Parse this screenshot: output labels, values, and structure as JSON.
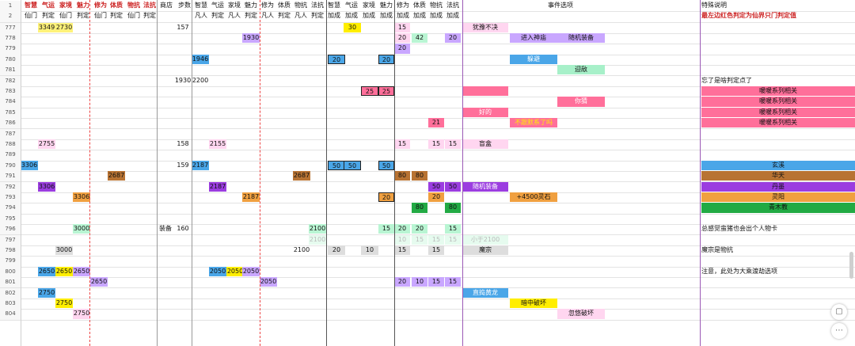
{
  "headers": {
    "row1": {
      "zhihui_xm": "智慧",
      "qiyun_xm": "气运",
      "jiajing_xm": "家境",
      "meili_xm": "魅力",
      "xiuwei_xm": "修为",
      "tizhi_xm": "体质",
      "wukang_xm": "物抗",
      "fakang_xm": "法抗",
      "shop": "商店",
      "steps": "步数",
      "zhihui_fr": "智慧",
      "qiyun_fr": "气运",
      "jiajing_fr": "家境",
      "meili_fr": "魅力",
      "xiuwei_fr": "修为",
      "tizhi_fr": "体质",
      "wukang_fr": "物抗",
      "fakang_fr": "法抗",
      "zhihui_j": "智慧",
      "qiyun_j": "气运",
      "jiajing_j": "家境",
      "meili_j": "魅力",
      "xiuwei_j": "修为",
      "tizhi_j": "体质",
      "wukang_j": "物抗",
      "fakang_j": "法抗",
      "events": "事件选项",
      "special": "特殊说明"
    },
    "row2": {
      "zhihui_xm": "仙门",
      "qiyun_xm": "判定",
      "jiajing_xm": "仙门",
      "meili_xm": "判定",
      "xiuwei_xm": "仙门",
      "tizhi_xm": "判定",
      "wukang_xm": "仙门",
      "fakang_xm": "判定",
      "zhihui_fr": "凡人",
      "qiyun_fr": "判定",
      "jiajing_fr": "凡人",
      "meili_fr": "判定",
      "xiuwei_fr": "凡人",
      "tizhi_fr": "判定",
      "wukang_fr": "凡人",
      "fakang_fr": "判定",
      "zhihui_j": "加成",
      "qiyun_j": "加成",
      "jiajing_j": "加成",
      "meili_j": "加成",
      "xiuwei_j": "加成",
      "tizhi_j": "加成",
      "wukang_j": "加成",
      "fakang_j": "加成",
      "special": "最左边红色判定为仙界只门判定值"
    }
  },
  "rows": [
    {
      "num": "777",
      "cells": [
        {
          "c": 2,
          "t": "3349",
          "bg": "#fff27a"
        },
        {
          "c": 3,
          "t": "2730",
          "bg": "#fff27a"
        },
        {
          "c": 10,
          "t": "157"
        },
        {
          "c": 20,
          "t": "30",
          "bg": "#ffee00"
        },
        {
          "c": 24,
          "t": "15",
          "bg": "#ffd6f0"
        },
        {
          "c": 28,
          "t": "犹豫不决",
          "bg": "#ffd6f0"
        }
      ]
    },
    {
      "num": "778",
      "cells": [
        {
          "c": 14,
          "t": "1930",
          "bg": "#c9a7ff"
        },
        {
          "c": 24,
          "t": "20",
          "bg": "#ffd6f0"
        },
        {
          "c": 25,
          "t": "42",
          "bg": "#b9f5d3"
        },
        {
          "c": 27,
          "t": "20",
          "bg": "#c9a7ff"
        },
        {
          "c": 29,
          "t": "进入神庙",
          "bg": "#c9a7ff"
        },
        {
          "c": 30,
          "t": "随机装备",
          "bg": "#c9a7ff"
        }
      ]
    },
    {
      "num": "779",
      "cells": [
        {
          "c": 24,
          "t": "20",
          "bg": "#c9a7ff"
        }
      ]
    },
    {
      "num": "780",
      "cells": [
        {
          "c": 11,
          "t": "1946",
          "bg": "#4aa6e8"
        },
        {
          "c": 19,
          "t": "20",
          "bg": "#4aa6e8"
        },
        {
          "c": 23,
          "t": "20",
          "bg": "#4aa6e8"
        },
        {
          "c": 29,
          "t": "躲避",
          "bg": "#4aa6e8"
        }
      ]
    },
    {
      "num": "781",
      "cells": [
        {
          "c": 30,
          "t": "迎敌",
          "bg": "#a7f0c9"
        }
      ]
    },
    {
      "num": "782",
      "cells": [
        {
          "c": 10,
          "t": "1930"
        },
        {
          "c": 11,
          "t": "2200"
        },
        {
          "c": 32,
          "t": "忘了是啥判定点了"
        }
      ]
    },
    {
      "num": "783",
      "cells": [
        {
          "c": 21,
          "t": "25",
          "bg": "#ff6f9a"
        },
        {
          "c": 23,
          "t": "25",
          "bg": "#ff6f9a"
        },
        {
          "c": 28,
          "t": "",
          "bg": "#ff6f9a"
        },
        {
          "c": 33,
          "t": "暖暖系列相关",
          "bg": "#ff6f9a"
        }
      ]
    },
    {
      "num": "784",
      "cells": [
        {
          "c": 30,
          "t": "你猜",
          "bg": "#ff6f9a"
        },
        {
          "c": 33,
          "t": "暖暖系列相关",
          "bg": "#ff6f9a"
        }
      ]
    },
    {
      "num": "785",
      "cells": [
        {
          "c": 28,
          "t": "好的",
          "bg": "#ff6f9a"
        },
        {
          "c": 33,
          "t": "暖暖系列相关",
          "bg": "#ff6f9a"
        }
      ]
    },
    {
      "num": "786",
      "cells": [
        {
          "c": 26,
          "t": "21",
          "bg": "#ff6f9a"
        },
        {
          "c": 29,
          "t": "不跟默系了吗",
          "bg": "#ff6f9a"
        },
        {
          "c": 33,
          "t": "暖暖系列相关",
          "bg": "#ff6f9a"
        }
      ]
    },
    {
      "num": "787",
      "cells": []
    },
    {
      "num": "788",
      "cells": [
        {
          "c": 2,
          "t": "2755",
          "bg": "#ffd6f0"
        },
        {
          "c": 10,
          "t": "158"
        },
        {
          "c": 12,
          "t": "2155",
          "bg": "#ffd6f0"
        },
        {
          "c": 24,
          "t": "15",
          "bg": "#ffd6f0"
        },
        {
          "c": 26,
          "t": "15",
          "bg": "#ffd6f0"
        },
        {
          "c": 27,
          "t": "15",
          "bg": "#ffd6f0"
        },
        {
          "c": 28,
          "t": "盲盒",
          "bg": "#ffd6f0"
        }
      ]
    },
    {
      "num": "789",
      "cells": []
    },
    {
      "num": "790",
      "cells": [
        {
          "c": 1,
          "t": "3306",
          "bg": "#4aa6e8"
        },
        {
          "c": 10,
          "t": "159"
        },
        {
          "c": 11,
          "t": "2187",
          "bg": "#4aa6e8"
        },
        {
          "c": 19,
          "t": "50",
          "bg": "#4aa6e8"
        },
        {
          "c": 20,
          "t": "50",
          "bg": "#4aa6e8"
        },
        {
          "c": 23,
          "t": "50",
          "bg": "#4aa6e8"
        },
        {
          "c": 33,
          "t": "玄溪",
          "bg": "#4aa6e8"
        }
      ]
    },
    {
      "num": "791",
      "cells": [
        {
          "c": 7,
          "t": "2687",
          "bg": "#b87333"
        },
        {
          "c": 17,
          "t": "2687",
          "bg": "#b87333"
        },
        {
          "c": 24,
          "t": "80",
          "bg": "#b87333"
        },
        {
          "c": 25,
          "t": "80",
          "bg": "#b87333"
        },
        {
          "c": 33,
          "t": "华天",
          "bg": "#b87333"
        }
      ]
    },
    {
      "num": "792",
      "cells": [
        {
          "c": 2,
          "t": "3306",
          "bg": "#9b3de0"
        },
        {
          "c": 12,
          "t": "2187",
          "bg": "#9b3de0"
        },
        {
          "c": 26,
          "t": "50",
          "bg": "#9b3de0"
        },
        {
          "c": 27,
          "t": "50",
          "bg": "#9b3de0"
        },
        {
          "c": 28,
          "t": "随机装备",
          "bg": "#9b3de0"
        },
        {
          "c": 33,
          "t": "丹墨",
          "bg": "#9b3de0"
        }
      ]
    },
    {
      "num": "793",
      "cells": [
        {
          "c": 4,
          "t": "3306",
          "bg": "#f0a040"
        },
        {
          "c": 14,
          "t": "2187",
          "bg": "#f0a040"
        },
        {
          "c": 23,
          "t": "20",
          "bg": "#f0a040"
        },
        {
          "c": 26,
          "t": "20",
          "bg": "#f0a040"
        },
        {
          "c": 29,
          "t": "+4500灵石",
          "bg": "#f0a040"
        },
        {
          "c": 33,
          "t": "灵阳",
          "bg": "#f0a040"
        }
      ]
    },
    {
      "num": "794",
      "cells": [
        {
          "c": 25,
          "t": "80",
          "bg": "#22aa44"
        },
        {
          "c": 27,
          "t": "80",
          "bg": "#22aa44"
        },
        {
          "c": 33,
          "t": "青木教",
          "bg": "#22aa44"
        }
      ]
    },
    {
      "num": "795",
      "cells": []
    },
    {
      "num": "796",
      "cells": [
        {
          "c": 4,
          "t": "3000",
          "bg": "#b9f5d3"
        },
        {
          "c": 9,
          "t": "装备"
        },
        {
          "c": 10,
          "t": "160"
        },
        {
          "c": 18,
          "t": "2100",
          "bg": "#b9f5d3"
        },
        {
          "c": 23,
          "t": "15",
          "bg": "#b9f5d3"
        },
        {
          "c": 24,
          "t": "20",
          "bg": "#b9f5d3"
        },
        {
          "c": 25,
          "t": "20",
          "bg": "#b9f5d3"
        },
        {
          "c": 27,
          "t": "15",
          "bg": "#b9f5d3"
        },
        {
          "c": 32,
          "t": "总感觉蛮猪也会出个人物卡"
        }
      ]
    },
    {
      "num": "797",
      "cells": [
        {
          "c": 18,
          "t": "2100",
          "bg": "#e6fbef"
        },
        {
          "c": 24,
          "t": "10",
          "bg": "#e6fbef"
        },
        {
          "c": 25,
          "t": "15",
          "bg": "#e6fbef"
        },
        {
          "c": 26,
          "t": "15",
          "bg": "#e6fbef"
        },
        {
          "c": 27,
          "t": "15",
          "bg": "#e6fbef"
        },
        {
          "c": 28,
          "t": "小于2100",
          "bg": "#e6fbef"
        }
      ]
    },
    {
      "num": "798",
      "cells": [
        {
          "c": 3,
          "t": "3000",
          "bg": "#dddddd"
        },
        {
          "c": 17,
          "t": "2100"
        },
        {
          "c": 19,
          "t": "20",
          "bg": "#dddddd"
        },
        {
          "c": 21,
          "t": "10",
          "bg": "#dddddd"
        },
        {
          "c": 24,
          "t": "15",
          "bg": "#dddddd"
        },
        {
          "c": 26,
          "t": "15",
          "bg": "#dddddd"
        },
        {
          "c": 28,
          "t": "魔宗",
          "bg": "#dddddd"
        },
        {
          "c": 32,
          "t": "魔宗是物抗"
        }
      ]
    },
    {
      "num": "799",
      "cells": []
    },
    {
      "num": "800",
      "cells": [
        {
          "c": 2,
          "t": "2650",
          "bg": "#4aa6e8"
        },
        {
          "c": 3,
          "t": "2650",
          "bg": "#ffee00"
        },
        {
          "c": 4,
          "t": "2650",
          "bg": "#c9a7ff"
        },
        {
          "c": 12,
          "t": "2050",
          "bg": "#4aa6e8"
        },
        {
          "c": 13,
          "t": "2050",
          "bg": "#ffee00"
        },
        {
          "c": 14,
          "t": "2050",
          "bg": "#c9a7ff"
        },
        {
          "c": 32,
          "t": "注意，此处为大乘渡劫选项"
        }
      ]
    },
    {
      "num": "801",
      "cells": [
        {
          "c": 5,
          "t": "2650",
          "bg": "#c9a7ff"
        },
        {
          "c": 15,
          "t": "2050",
          "bg": "#c9a7ff"
        },
        {
          "c": 24,
          "t": "20",
          "bg": "#c9a7ff"
        },
        {
          "c": 25,
          "t": "10",
          "bg": "#c9a7ff"
        },
        {
          "c": 26,
          "t": "15",
          "bg": "#c9a7ff"
        },
        {
          "c": 27,
          "t": "15",
          "bg": "#c9a7ff"
        }
      ]
    },
    {
      "num": "802",
      "cells": [
        {
          "c": 2,
          "t": "2750",
          "bg": "#4aa6e8"
        },
        {
          "c": 28,
          "t": "直捣黄龙",
          "bg": "#4aa6e8"
        }
      ]
    },
    {
      "num": "803",
      "cells": [
        {
          "c": 3,
          "t": "2750",
          "bg": "#ffee00"
        },
        {
          "c": 29,
          "t": "暗中破坏",
          "bg": "#ffee00"
        }
      ]
    },
    {
      "num": "804",
      "cells": [
        {
          "c": 4,
          "t": "2750",
          "bg": "#ffd6f0"
        },
        {
          "c": 30,
          "t": "忽悠破坏",
          "bg": "#ffd6f0"
        }
      ]
    }
  ],
  "tools": {
    "chat_icon": "▢",
    "more_icon": "⋯"
  }
}
